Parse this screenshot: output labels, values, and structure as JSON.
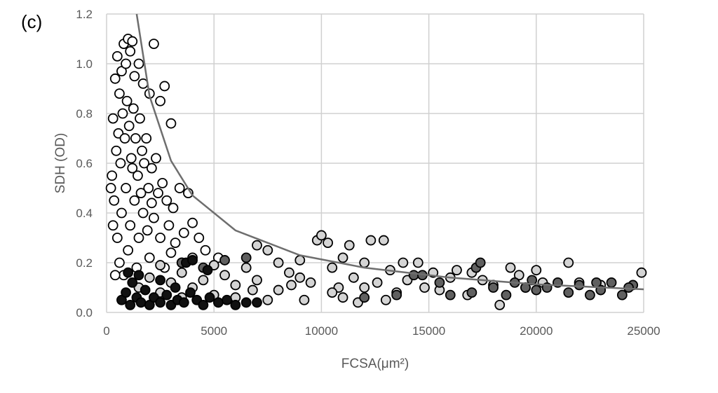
{
  "chart_data": {
    "type": "scatter",
    "panel_label": "(c)",
    "xlabel": "FCSA(μm²)",
    "ylabel": "SDH (OD)",
    "xlim": [
      0,
      25000
    ],
    "ylim": [
      0,
      1.2
    ],
    "xticks": [
      "0",
      "5000",
      "10000",
      "15000",
      "20000",
      "25000"
    ],
    "yticks": [
      "0.0",
      "0.2",
      "0.4",
      "0.6",
      "0.8",
      "1.0",
      "1.2"
    ],
    "grid": true,
    "legend": "none",
    "series": [
      {
        "color": "#ffffff",
        "points": [
          [
            400,
            0.94
          ],
          [
            500,
            1.03
          ],
          [
            300,
            0.78
          ],
          [
            250,
            0.55
          ],
          [
            350,
            0.45
          ],
          [
            600,
            0.88
          ],
          [
            700,
            0.97
          ],
          [
            800,
            1.08
          ],
          [
            900,
            1.0
          ],
          [
            1000,
            1.1
          ],
          [
            1100,
            1.05
          ],
          [
            1200,
            1.09
          ],
          [
            1300,
            0.95
          ],
          [
            1500,
            1.0
          ],
          [
            1700,
            0.92
          ],
          [
            2000,
            0.88
          ],
          [
            2200,
            1.08
          ],
          [
            2700,
            0.91
          ],
          [
            3000,
            0.76
          ],
          [
            2500,
            0.85
          ],
          [
            450,
            0.65
          ],
          [
            550,
            0.72
          ],
          [
            650,
            0.6
          ],
          [
            750,
            0.8
          ],
          [
            850,
            0.7
          ],
          [
            950,
            0.85
          ],
          [
            1050,
            0.75
          ],
          [
            1150,
            0.62
          ],
          [
            1250,
            0.82
          ],
          [
            1350,
            0.7
          ],
          [
            1450,
            0.55
          ],
          [
            1550,
            0.78
          ],
          [
            1650,
            0.65
          ],
          [
            1750,
            0.6
          ],
          [
            1850,
            0.7
          ],
          [
            1950,
            0.5
          ],
          [
            2100,
            0.58
          ],
          [
            2300,
            0.62
          ],
          [
            2400,
            0.48
          ],
          [
            2600,
            0.52
          ],
          [
            2800,
            0.45
          ],
          [
            3100,
            0.42
          ],
          [
            3400,
            0.5
          ],
          [
            3800,
            0.48
          ],
          [
            300,
            0.35
          ],
          [
            500,
            0.3
          ],
          [
            700,
            0.4
          ],
          [
            900,
            0.5
          ],
          [
            1100,
            0.35
          ],
          [
            1300,
            0.45
          ],
          [
            1500,
            0.3
          ],
          [
            1700,
            0.4
          ],
          [
            1900,
            0.33
          ],
          [
            2200,
            0.38
          ],
          [
            2500,
            0.3
          ],
          [
            2900,
            0.35
          ],
          [
            3200,
            0.28
          ],
          [
            3600,
            0.32
          ],
          [
            4000,
            0.36
          ],
          [
            4300,
            0.3
          ],
          [
            4600,
            0.25
          ],
          [
            600,
            0.2
          ],
          [
            800,
            0.15
          ],
          [
            1000,
            0.25
          ],
          [
            1400,
            0.18
          ],
          [
            2000,
            0.22
          ],
          [
            2700,
            0.18
          ],
          [
            3500,
            0.2
          ],
          [
            400,
            0.15
          ],
          [
            200,
            0.5
          ],
          [
            1200,
            0.58
          ],
          [
            1600,
            0.48
          ],
          [
            2100,
            0.44
          ],
          [
            5200,
            0.22
          ],
          [
            3000,
            0.24
          ]
        ]
      },
      {
        "color": "#d4d4d4",
        "points": [
          [
            1500,
            0.1
          ],
          [
            2000,
            0.14
          ],
          [
            2500,
            0.08
          ],
          [
            3000,
            0.12
          ],
          [
            3500,
            0.16
          ],
          [
            4000,
            0.1
          ],
          [
            4500,
            0.13
          ],
          [
            5000,
            0.07
          ],
          [
            5500,
            0.15
          ],
          [
            6000,
            0.11
          ],
          [
            6500,
            0.18
          ],
          [
            7000,
            0.13
          ],
          [
            7500,
            0.25
          ],
          [
            7000,
            0.27
          ],
          [
            8000,
            0.09
          ],
          [
            8500,
            0.16
          ],
          [
            9000,
            0.21
          ],
          [
            9200,
            0.05
          ],
          [
            9500,
            0.12
          ],
          [
            9800,
            0.29
          ],
          [
            10000,
            0.31
          ],
          [
            10300,
            0.28
          ],
          [
            10500,
            0.18
          ],
          [
            10800,
            0.1
          ],
          [
            11000,
            0.22
          ],
          [
            11300,
            0.27
          ],
          [
            11500,
            0.14
          ],
          [
            11700,
            0.04
          ],
          [
            12000,
            0.2
          ],
          [
            12300,
            0.29
          ],
          [
            12600,
            0.12
          ],
          [
            12900,
            0.29
          ],
          [
            13200,
            0.17
          ],
          [
            13500,
            0.08
          ],
          [
            13800,
            0.2
          ],
          [
            14000,
            0.13
          ],
          [
            14500,
            0.2
          ],
          [
            14800,
            0.1
          ],
          [
            15200,
            0.16
          ],
          [
            15500,
            0.09
          ],
          [
            16000,
            0.14
          ],
          [
            16300,
            0.17
          ],
          [
            16800,
            0.07
          ],
          [
            17000,
            0.16
          ],
          [
            17500,
            0.13
          ],
          [
            18000,
            0.11
          ],
          [
            18300,
            0.03
          ],
          [
            18800,
            0.18
          ],
          [
            19200,
            0.15
          ],
          [
            19500,
            0.1
          ],
          [
            20000,
            0.17
          ],
          [
            20300,
            0.12
          ],
          [
            21500,
            0.2
          ],
          [
            22000,
            0.12
          ],
          [
            23000,
            0.11
          ],
          [
            24900,
            0.16
          ],
          [
            6000,
            0.06
          ],
          [
            8000,
            0.2
          ],
          [
            9000,
            0.14
          ],
          [
            10500,
            0.08
          ],
          [
            12000,
            0.1
          ],
          [
            5000,
            0.19
          ],
          [
            4000,
            0.22
          ],
          [
            2500,
            0.19
          ],
          [
            3500,
            0.06
          ],
          [
            7500,
            0.05
          ],
          [
            11000,
            0.06
          ],
          [
            13000,
            0.05
          ],
          [
            8600,
            0.11
          ],
          [
            6800,
            0.09
          ]
        ]
      },
      {
        "color": "#606060",
        "points": [
          [
            3500,
            0.2
          ],
          [
            4500,
            0.18
          ],
          [
            5500,
            0.21
          ],
          [
            6500,
            0.22
          ],
          [
            14300,
            0.15
          ],
          [
            14700,
            0.15
          ],
          [
            16000,
            0.07
          ],
          [
            17200,
            0.18
          ],
          [
            17400,
            0.2
          ],
          [
            18000,
            0.1
          ],
          [
            18600,
            0.07
          ],
          [
            19000,
            0.12
          ],
          [
            19500,
            0.1
          ],
          [
            20500,
            0.1
          ],
          [
            21000,
            0.12
          ],
          [
            21500,
            0.08
          ],
          [
            22000,
            0.11
          ],
          [
            22500,
            0.07
          ],
          [
            23000,
            0.09
          ],
          [
            23500,
            0.12
          ],
          [
            24000,
            0.07
          ],
          [
            24500,
            0.11
          ],
          [
            17000,
            0.08
          ],
          [
            15500,
            0.12
          ],
          [
            13500,
            0.07
          ],
          [
            12000,
            0.06
          ],
          [
            20000,
            0.09
          ],
          [
            22800,
            0.12
          ],
          [
            24300,
            0.1
          ],
          [
            19800,
            0.13
          ]
        ]
      },
      {
        "color": "#111111",
        "points": [
          [
            700,
            0.05
          ],
          [
            900,
            0.08
          ],
          [
            1100,
            0.03
          ],
          [
            1200,
            0.12
          ],
          [
            1400,
            0.06
          ],
          [
            1600,
            0.04
          ],
          [
            1800,
            0.09
          ],
          [
            2000,
            0.03
          ],
          [
            2200,
            0.06
          ],
          [
            2500,
            0.04
          ],
          [
            2800,
            0.07
          ],
          [
            3000,
            0.03
          ],
          [
            3300,
            0.05
          ],
          [
            3600,
            0.04
          ],
          [
            3900,
            0.08
          ],
          [
            4200,
            0.05
          ],
          [
            4500,
            0.03
          ],
          [
            4800,
            0.06
          ],
          [
            5200,
            0.04
          ],
          [
            5600,
            0.05
          ],
          [
            6000,
            0.03
          ],
          [
            6500,
            0.04
          ],
          [
            7000,
            0.04
          ],
          [
            1500,
            0.15
          ],
          [
            2500,
            0.13
          ],
          [
            3700,
            0.2
          ],
          [
            4000,
            0.21
          ],
          [
            4700,
            0.17
          ],
          [
            1000,
            0.16
          ],
          [
            3200,
            0.1
          ]
        ]
      }
    ],
    "trendline": {
      "type": "power",
      "color": "#6e6e6e",
      "points": [
        [
          1400,
          1.2
        ],
        [
          2000,
          0.87
        ],
        [
          3000,
          0.61
        ],
        [
          4000,
          0.47
        ],
        [
          6000,
          0.33
        ],
        [
          9000,
          0.23
        ],
        [
          12000,
          0.18
        ],
        [
          16000,
          0.14
        ],
        [
          20000,
          0.113
        ],
        [
          25000,
          0.093
        ]
      ]
    }
  }
}
